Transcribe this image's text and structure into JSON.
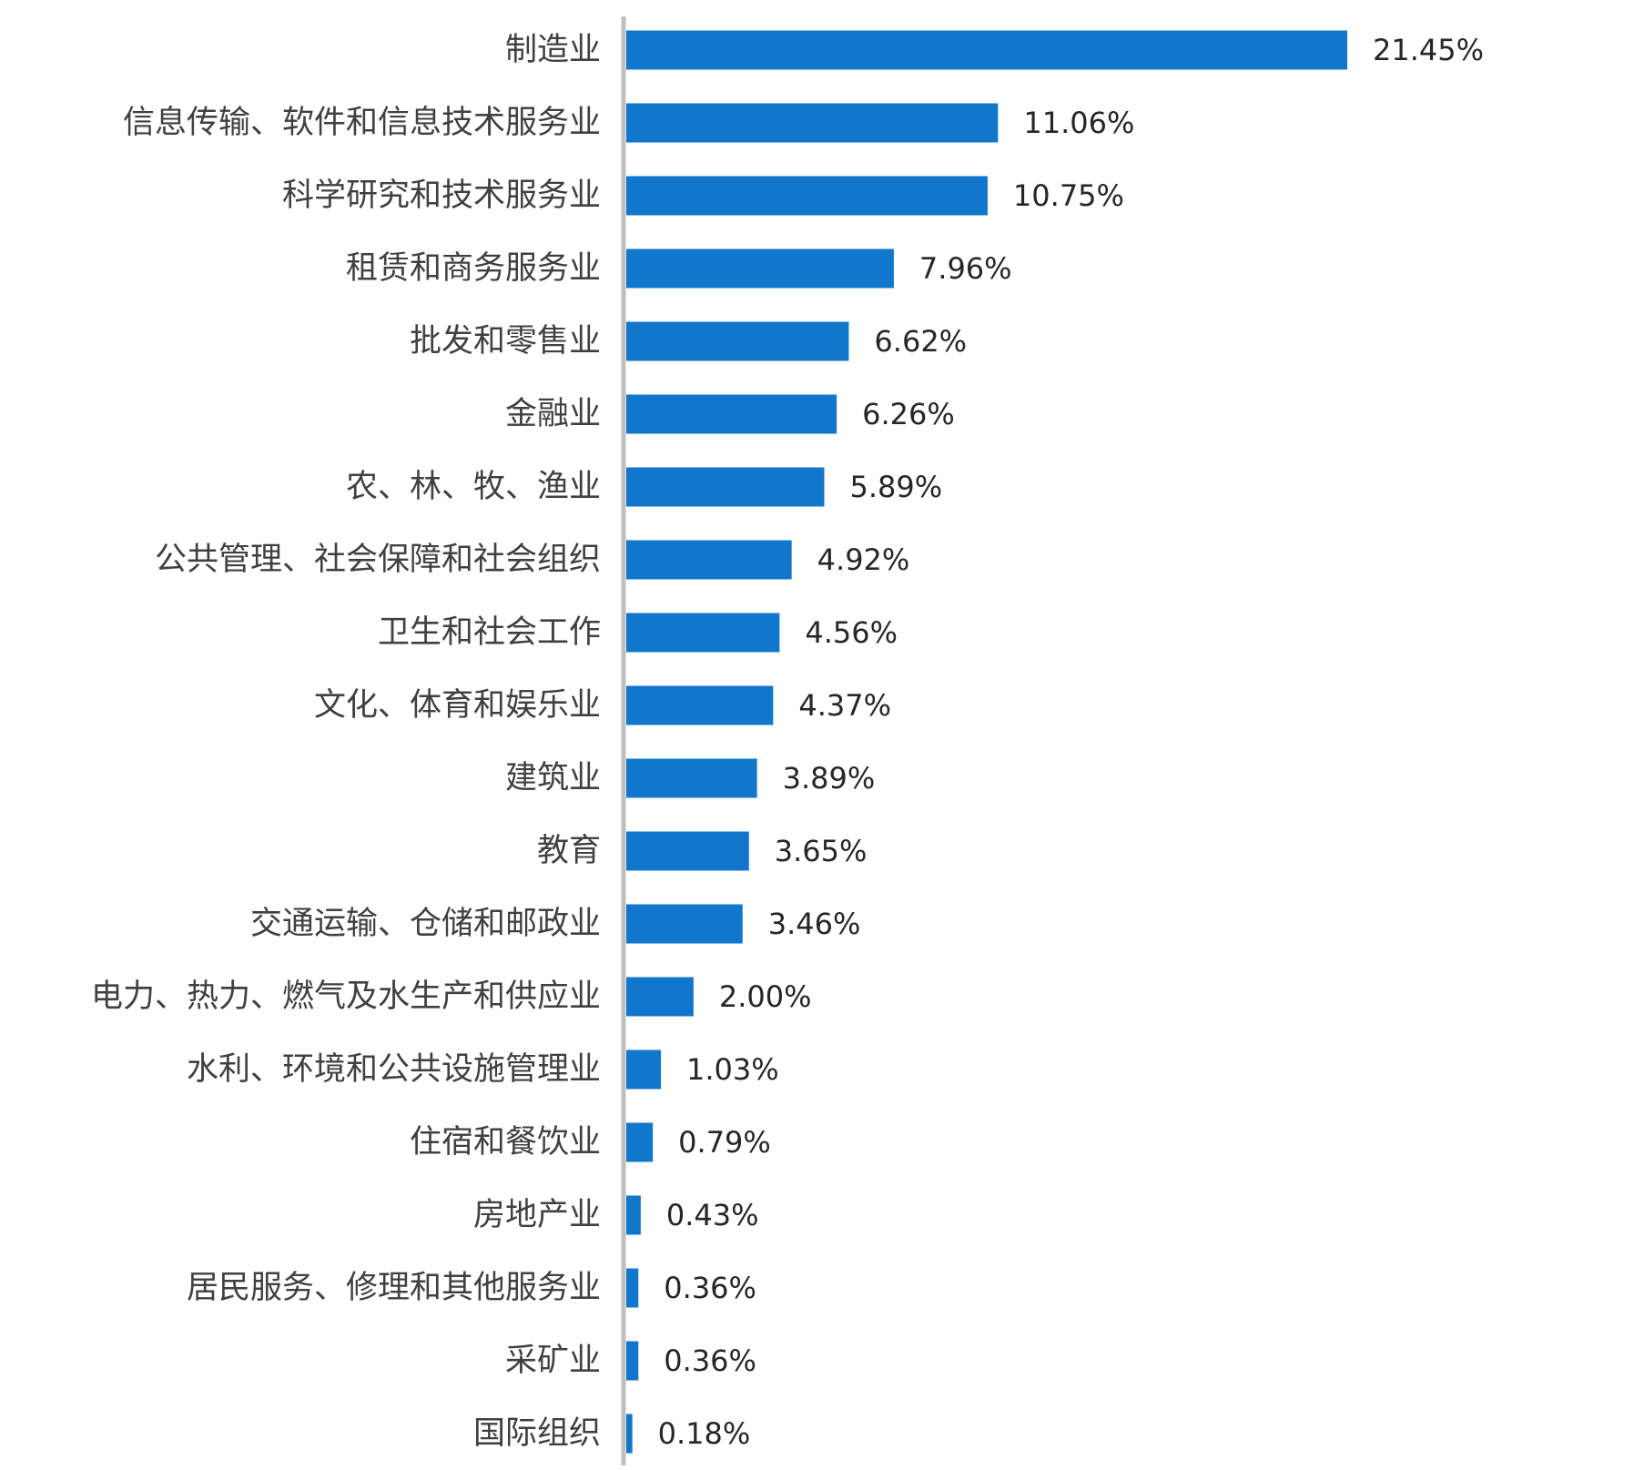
{
  "chart_data": {
    "type": "bar",
    "orientation": "horizontal",
    "title": "",
    "xlabel": "",
    "ylabel": "",
    "grid": false,
    "legend": "none",
    "bar_color": "#1177cc",
    "axis_color": "#bfbfbf",
    "value_unit": "%",
    "xlim": [
      0,
      21.45
    ],
    "categories": [
      "制造业",
      "信息传输、软件和信息技术服务业",
      "科学研究和技术服务业",
      "租赁和商务服务业",
      "批发和零售业",
      "金融业",
      "农、林、牧、渔业",
      "公共管理、社会保障和社会组织",
      "卫生和社会工作",
      "文化、体育和娱乐业",
      "建筑业",
      "教育",
      "交通运输、仓储和邮政业",
      "电力、热力、燃气及水生产和供应业",
      "水利、环境和公共设施管理业",
      "住宿和餐饮业",
      "房地产业",
      "居民服务、修理和其他服务业",
      "采矿业",
      "国际组织"
    ],
    "values": [
      21.45,
      11.06,
      10.75,
      7.96,
      6.62,
      6.26,
      5.89,
      4.92,
      4.56,
      4.37,
      3.89,
      3.65,
      3.46,
      2.0,
      1.03,
      0.79,
      0.43,
      0.36,
      0.36,
      0.18
    ],
    "value_labels": [
      "21.45%",
      "11.06%",
      "10.75%",
      "7.96%",
      "6.62%",
      "6.26%",
      "5.89%",
      "4.92%",
      "4.56%",
      "4.37%",
      "3.89%",
      "3.65%",
      "3.46%",
      "2.00%",
      "1.03%",
      "0.79%",
      "0.43%",
      "0.36%",
      "0.36%",
      "0.18%"
    ]
  }
}
